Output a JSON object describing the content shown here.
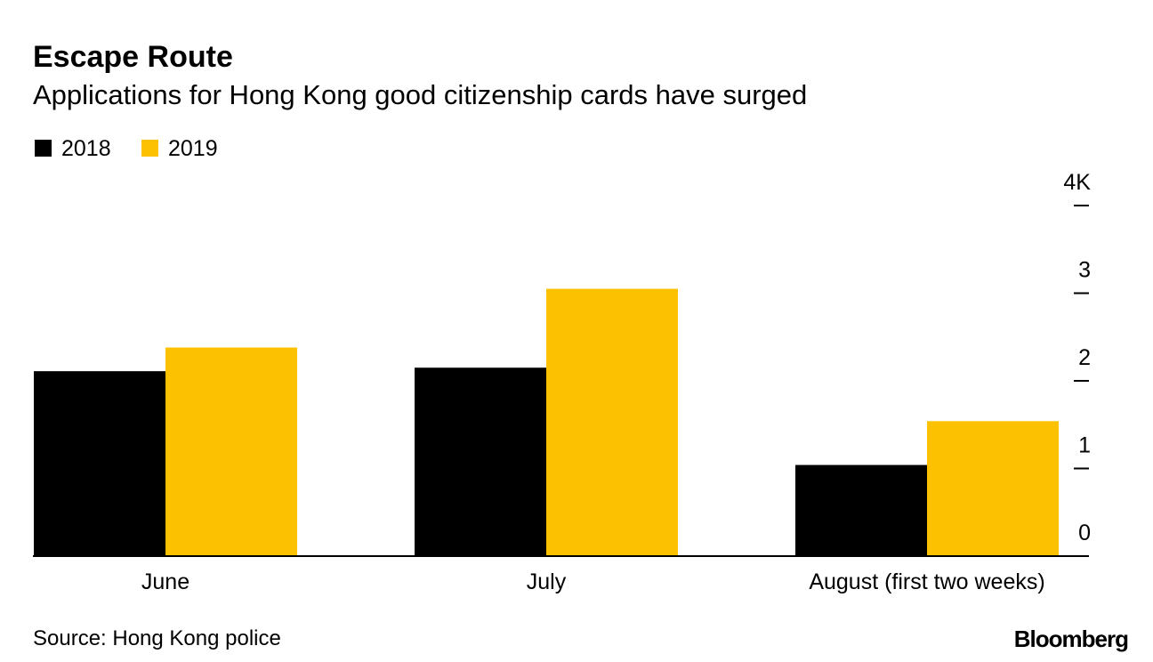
{
  "chart_data": {
    "type": "bar",
    "title": "Escape Route",
    "subtitle": "Applications for Hong Kong good citizenship cards have surged",
    "categories": [
      "June",
      "July",
      "August (first two weeks)"
    ],
    "series": [
      {
        "name": "2018",
        "color": "#000000",
        "values": [
          2110,
          2150,
          1040
        ]
      },
      {
        "name": "2019",
        "color": "#fcc100",
        "values": [
          2380,
          3050,
          1540
        ]
      }
    ],
    "ylim": [
      0,
      4000
    ],
    "yticks": [
      0,
      {
        "value": 1000,
        "label": "1"
      },
      {
        "value": 2000,
        "label": "2"
      },
      {
        "value": 3000,
        "label": "3"
      },
      {
        "value": 4000,
        "label": "4K"
      }
    ],
    "source": "Source: Hong Kong police",
    "brand": "Bloomberg"
  }
}
